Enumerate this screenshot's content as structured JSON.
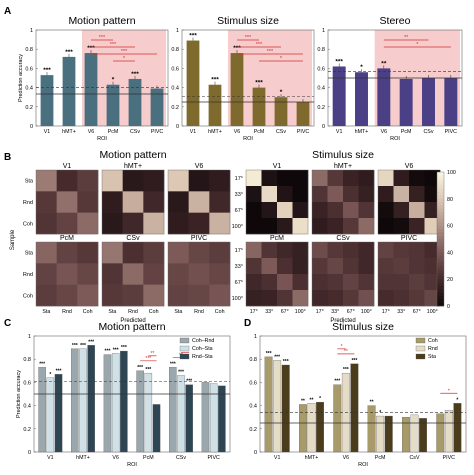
{
  "panels": {
    "A": "A",
    "B": "B",
    "C": "C",
    "D": "D"
  },
  "chart_data": [
    {
      "id": "A1",
      "type": "bar",
      "title": "Motion pattern",
      "ylabel": "Prediction accuracy",
      "xlabel": "ROI",
      "categories": [
        "V1",
        "hMT+",
        "V6",
        "PcM",
        "CSv",
        "PIVC"
      ],
      "values": [
        0.53,
        0.72,
        0.76,
        0.43,
        0.49,
        0.39
      ],
      "stars": [
        "***",
        "***",
        "***",
        "*",
        "***",
        ""
      ],
      "ylim": [
        0,
        1
      ],
      "yticks": [
        "0",
        "0.2",
        "0.4",
        "0.6",
        "0.8",
        "1"
      ],
      "color": "#4a6f7f",
      "chance": 0.333,
      "threshold": 0.4,
      "brackets": [
        {
          "from": 2,
          "to": 3,
          "label": "***"
        },
        {
          "from": 2,
          "to": 4,
          "label": "***"
        },
        {
          "from": 2,
          "to": 5,
          "label": "***"
        },
        {
          "from": 3,
          "to": 4,
          "label": "*"
        }
      ]
    },
    {
      "id": "A2",
      "type": "bar",
      "title": "Stimulus size",
      "xlabel": "ROI",
      "categories": [
        "V1",
        "hMT+",
        "V6",
        "PcM",
        "CSv",
        "PIVC"
      ],
      "values": [
        0.89,
        0.43,
        0.76,
        0.4,
        0.3,
        0.25
      ],
      "stars": [
        "***",
        "***",
        "***",
        "***",
        "*",
        ""
      ],
      "ylim": [
        0,
        1
      ],
      "yticks": [
        "0",
        "0.2",
        "0.4",
        "0.6",
        "0.8",
        "1"
      ],
      "color": "#7f6a2e",
      "chance": 0.25,
      "threshold": 0.31,
      "brackets": [
        {
          "from": 2,
          "to": 3,
          "label": "***"
        },
        {
          "from": 2,
          "to": 4,
          "label": "***"
        },
        {
          "from": 2,
          "to": 5,
          "label": "***"
        },
        {
          "from": 3,
          "to": 5,
          "label": "*"
        }
      ]
    },
    {
      "id": "A3",
      "type": "bar",
      "title": "Stereo",
      "xlabel": "ROI",
      "categories": [
        "V1",
        "hMT+",
        "V6",
        "PcM",
        "CSv",
        "PIVC"
      ],
      "values": [
        0.62,
        0.56,
        0.6,
        0.49,
        0.5,
        0.5
      ],
      "stars": [
        "***",
        "*",
        "**",
        "",
        "",
        ""
      ],
      "ylim": [
        0,
        1
      ],
      "yticks": [
        "0",
        "0.2",
        "0.4",
        "0.6",
        "0.8",
        "1"
      ],
      "color": "#4b3f85",
      "chance": 0.5,
      "threshold": 0.57,
      "brackets": [
        {
          "from": 2,
          "to": 4,
          "label": "**"
        },
        {
          "from": 2,
          "to": 5,
          "label": "*"
        }
      ]
    },
    {
      "id": "B1",
      "type": "heatmap",
      "title": "Motion pattern",
      "ylabel": "Sample",
      "xlabel": "Predicted",
      "row_labels": [
        "Sta",
        "Rnd",
        "Coh"
      ],
      "col_labels": [
        "Sta",
        "Rnd",
        "Coh"
      ],
      "colorbar": {
        "min": 0,
        "max": 100,
        "ticks": [
          "0",
          "20",
          "40",
          "60",
          "80",
          "100"
        ]
      },
      "maps": [
        {
          "title": "V1",
          "values": [
            [
              52,
              20,
              28
            ],
            [
              26,
              48,
              26
            ],
            [
              24,
              30,
              46
            ]
          ]
        },
        {
          "title": "hMT+",
          "values": [
            [
              78,
              10,
              12
            ],
            [
              12,
              70,
              18
            ],
            [
              10,
              18,
              72
            ]
          ]
        },
        {
          "title": "V6",
          "values": [
            [
              80,
              8,
              12
            ],
            [
              10,
              72,
              18
            ],
            [
              12,
              16,
              72
            ]
          ]
        },
        {
          "title": "PcM",
          "values": [
            [
              44,
              30,
              26
            ],
            [
              30,
              38,
              32
            ],
            [
              28,
              32,
              40
            ]
          ]
        },
        {
          "title": "CSv",
          "values": [
            [
              50,
              22,
              28
            ],
            [
              24,
              46,
              30
            ],
            [
              26,
              28,
              46
            ]
          ]
        },
        {
          "title": "PIVC",
          "values": [
            [
              40,
              32,
              28
            ],
            [
              32,
              36,
              32
            ],
            [
              30,
              32,
              38
            ]
          ]
        }
      ]
    },
    {
      "id": "B2",
      "type": "heatmap",
      "title": "Stimulus size",
      "xlabel": "Predicted",
      "row_labels": [
        "17°",
        "33°",
        "67°",
        "100°"
      ],
      "col_labels": [
        "17°",
        "33°",
        "67°",
        "100°"
      ],
      "colorbar": {
        "min": 0,
        "max": 100,
        "ticks": [
          "0",
          "20",
          "40",
          "60",
          "80",
          "100"
        ]
      },
      "maps": [
        {
          "title": "V1",
          "values": [
            [
              95,
              5,
              0,
              0
            ],
            [
              5,
              88,
              7,
              0
            ],
            [
              0,
              8,
              84,
              8
            ],
            [
              0,
              0,
              10,
              90
            ]
          ]
        },
        {
          "title": "hMT+",
          "values": [
            [
              46,
              26,
              16,
              12
            ],
            [
              24,
              40,
              22,
              14
            ],
            [
              16,
              22,
              38,
              24
            ],
            [
              12,
              16,
              26,
              46
            ]
          ]
        },
        {
          "title": "V6",
          "values": [
            [
              86,
              12,
              2,
              0
            ],
            [
              12,
              72,
              14,
              2
            ],
            [
              2,
              14,
              70,
              14
            ],
            [
              0,
              2,
              16,
              82
            ]
          ]
        },
        {
          "title": "PcM",
          "values": [
            [
              44,
              24,
              18,
              14
            ],
            [
              24,
              40,
              22,
              14
            ],
            [
              18,
              22,
              38,
              22
            ],
            [
              14,
              16,
              24,
              46
            ]
          ]
        },
        {
          "title": "CSv",
          "values": [
            [
              34,
              26,
              22,
              18
            ],
            [
              26,
              32,
              24,
              18
            ],
            [
              22,
              24,
              30,
              24
            ],
            [
              18,
              20,
              26,
              36
            ]
          ]
        },
        {
          "title": "PIVC",
          "values": [
            [
              30,
              26,
              24,
              20
            ],
            [
              26,
              28,
              24,
              22
            ],
            [
              24,
              24,
              28,
              24
            ],
            [
              20,
              22,
              26,
              32
            ]
          ]
        }
      ]
    },
    {
      "id": "C",
      "type": "bar",
      "title": "Motion pattern",
      "ylabel": "Prediction accuracy",
      "xlabel": "ROI",
      "categories": [
        "V1",
        "hMT+",
        "V6",
        "PcM",
        "CSv",
        "PIVC"
      ],
      "series": [
        {
          "name": "Coh–Rnd",
          "values": [
            0.73,
            0.89,
            0.84,
            0.7,
            0.73,
            0.6
          ],
          "stars": [
            "***",
            "***",
            "***",
            "***",
            "***",
            ""
          ],
          "color": "#9aa7ad"
        },
        {
          "name": "Coh–Sta",
          "values": [
            0.64,
            0.89,
            0.85,
            0.68,
            0.66,
            0.59
          ],
          "stars": [
            "*",
            "***",
            "***",
            "***",
            "***",
            ""
          ],
          "color": "#cfe0e6"
        },
        {
          "name": "Rnd–Sta",
          "values": [
            0.67,
            0.92,
            0.87,
            0.41,
            0.58,
            0.57
          ],
          "stars": [
            "***",
            "***",
            "***",
            "",
            "***",
            ""
          ],
          "color": "#2e4654"
        }
      ],
      "ylim": [
        0,
        1
      ],
      "yticks": [
        "0",
        "0.2",
        "0.4",
        "0.6",
        "0.8",
        "1"
      ],
      "chance": 0.5,
      "threshold": 0.61,
      "brackets": [
        {
          "cat": 3,
          "from": 0,
          "to": 2,
          "label": "***"
        },
        {
          "cat": 3,
          "from": 1,
          "to": 2,
          "label": "**"
        },
        {
          "cat": 4,
          "from": 0,
          "to": 2,
          "label": "**"
        },
        {
          "cat": 4,
          "from": 1,
          "to": 2,
          "label": "*"
        }
      ]
    },
    {
      "id": "D",
      "type": "bar",
      "title": "Stimulus size",
      "xlabel": "ROI",
      "categories": [
        "V1",
        "hMT+",
        "V6",
        "PcM",
        "CsV",
        "PIVC"
      ],
      "series": [
        {
          "name": "Coh",
          "values": [
            0.82,
            0.41,
            0.58,
            0.4,
            0.3,
            0.33
          ],
          "stars": [
            "***",
            "**",
            "***",
            "**",
            "",
            ""
          ],
          "color": "#a99a6a"
        },
        {
          "name": "Rnd",
          "values": [
            0.79,
            0.42,
            0.68,
            0.31,
            0.32,
            0.36
          ],
          "stars": [
            "***",
            "**",
            "***",
            "*",
            "",
            ""
          ],
          "color": "#e4dcc6"
        },
        {
          "name": "Sta",
          "values": [
            0.75,
            0.43,
            0.76,
            0.31,
            0.29,
            0.42
          ],
          "stars": [
            "***",
            "*",
            "***",
            "",
            "",
            "*"
          ],
          "color": "#4b3d1c"
        }
      ],
      "ylim": [
        0,
        1
      ],
      "yticks": [
        "0",
        "0.2",
        "0.4",
        "0.6",
        "0.8",
        "1"
      ],
      "chance": 0.25,
      "threshold": 0.34,
      "brackets": [
        {
          "cat": 2,
          "from": 0,
          "to": 2,
          "label": "**"
        },
        {
          "cat": 2,
          "from": 0,
          "to": 1,
          "label": "*"
        },
        {
          "cat": 5,
          "from": 0,
          "to": 2,
          "label": "*"
        }
      ]
    }
  ]
}
